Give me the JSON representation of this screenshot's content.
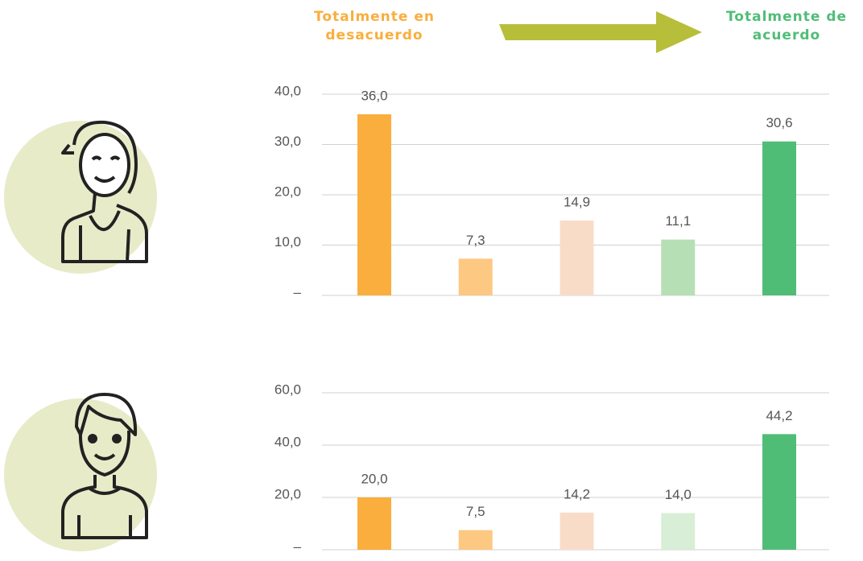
{
  "header": {
    "left_label": "Totalmente en desacuerdo",
    "right_label": "Totalmente de acuerdo"
  },
  "chart_data": [
    {
      "type": "bar",
      "categories": [
        null,
        null,
        null,
        null,
        null
      ],
      "values": [
        36.0,
        7.3,
        14.9,
        11.1,
        30.6
      ],
      "value_labels": [
        "36,0",
        "7,3",
        "14,9",
        "11,1",
        "30,6"
      ],
      "colors": [
        "#f9ae3d",
        "#fdc882",
        "#f9dcc8",
        "#b7dfb5",
        "#50bd77"
      ],
      "ylim": [
        0,
        40
      ],
      "yticks": [
        {
          "value": 0,
          "label": "–"
        },
        {
          "value": 10,
          "label": "10,0"
        },
        {
          "value": 20,
          "label": "20,0"
        },
        {
          "value": 30,
          "label": "30,0"
        },
        {
          "value": 40,
          "label": "40,0"
        }
      ],
      "grid": true
    },
    {
      "type": "bar",
      "categories": [
        null,
        null,
        null,
        null,
        null
      ],
      "values": [
        20.0,
        7.5,
        14.2,
        14.0,
        44.2
      ],
      "value_labels": [
        "20,0",
        "7,5",
        "14,2",
        "14,0",
        "44,2"
      ],
      "colors": [
        "#f9ae3d",
        "#fdc882",
        "#f9dcc8",
        "#d8eed6",
        "#50bd77"
      ],
      "ylim": [
        0,
        60
      ],
      "yticks": [
        {
          "value": 0,
          "label": "–"
        },
        {
          "value": 20,
          "label": "20,0"
        },
        {
          "value": 40,
          "label": "40,0"
        },
        {
          "value": 60,
          "label": "60,0"
        }
      ],
      "grid": true
    }
  ]
}
